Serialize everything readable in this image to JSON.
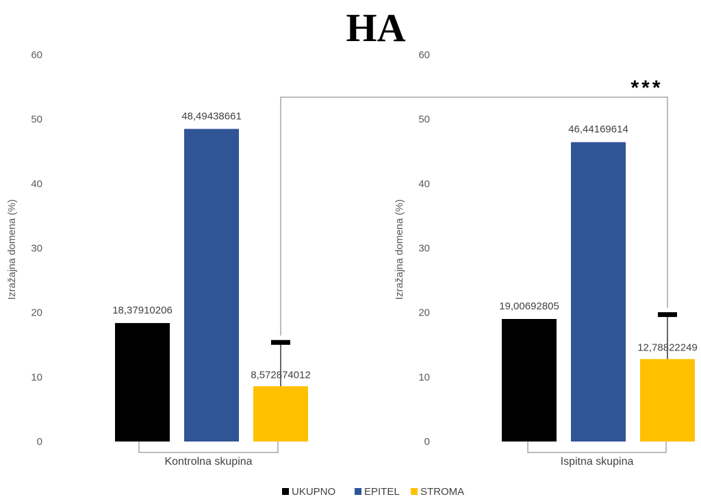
{
  "chart_data": [
    {
      "type": "bar",
      "title": "HA",
      "ylabel": "Izražajna domena (%)",
      "categories": [
        "Kontrolna skupina"
      ],
      "series": [
        {
          "name": "UKUPNO",
          "color": "#000000",
          "values": [
            18.37910206
          ],
          "label": "18,37910206"
        },
        {
          "name": "EPITEL",
          "color": "#2F5597",
          "values": [
            48.49438661
          ],
          "label": "48,49438661"
        },
        {
          "name": "STROMA",
          "color": "#FFC000",
          "values": [
            8.572874012
          ],
          "label": "8,572874012",
          "error_plus": 6.8
        }
      ],
      "ylim": [
        0,
        60
      ],
      "yticks": [
        "0",
        "10",
        "20",
        "30",
        "40",
        "50",
        "60"
      ],
      "grid": false
    },
    {
      "type": "bar",
      "ylabel": "Izražajna domena (%)",
      "categories": [
        "Ispitna skupina"
      ],
      "series": [
        {
          "name": "UKUPNO",
          "color": "#000000",
          "values": [
            19.00692805
          ],
          "label": "19,00692805"
        },
        {
          "name": "EPITEL",
          "color": "#2F5597",
          "values": [
            46.44169614
          ],
          "label": "46,44169614"
        },
        {
          "name": "STROMA",
          "color": "#FFC000",
          "values": [
            12.78822249
          ],
          "label": "12,78822249",
          "error_plus": 6.9
        }
      ],
      "ylim": [
        0,
        60
      ],
      "yticks": [
        "0",
        "10",
        "20",
        "30",
        "40",
        "50",
        "60"
      ],
      "grid": false
    }
  ],
  "significance": "***",
  "legend_position": "bottom"
}
